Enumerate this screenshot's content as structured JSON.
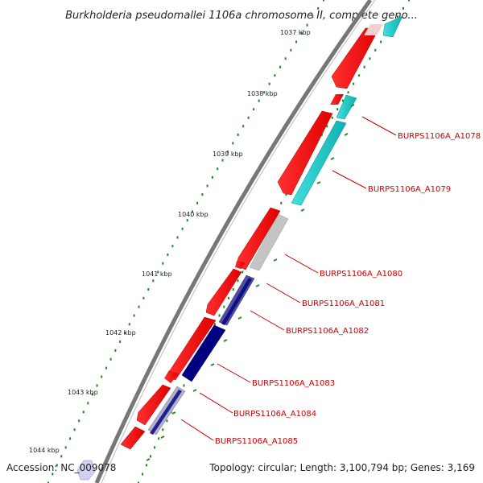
{
  "title": "Burkholderia pseudomallei 1106a chromosome II, complete geno...",
  "ticks": [
    "1037 kbp",
    "1038 kbp",
    "1039 kbp",
    "1040 kbp",
    "1041 kbp",
    "1042 kbp",
    "1043 kbp",
    "1044 kbp"
  ],
  "genes": [
    {
      "label": "BURPS1106A_A1078"
    },
    {
      "label": "BURPS1106A_A1079"
    },
    {
      "label": "BURPS1106A_A1080"
    },
    {
      "label": "BURPS1106A_A1081"
    },
    {
      "label": "BURPS1106A_A1082"
    },
    {
      "label": "BURPS1106A_A1083"
    },
    {
      "label": "BURPS1106A_A1084"
    },
    {
      "label": "BURPS1106A_A1085"
    }
  ],
  "footer": {
    "accession": "Accession: NC_009078",
    "summary": "Topology: circular; Length: 3,100,794 bp; Genes: 3,169"
  },
  "colors": {
    "backbone": "#777777",
    "red": "#ff0000",
    "cyan": "#20c8c8",
    "grey": "#c0c0c0",
    "navy": "#000080",
    "tick_dots": "#1a8a1a",
    "label": "#cc0000"
  }
}
